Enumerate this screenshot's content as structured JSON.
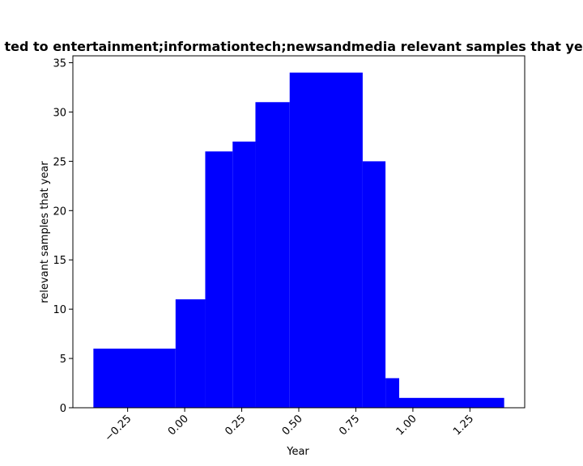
{
  "chart_data": {
    "type": "bar",
    "title": "ted to entertainment;informationtech;newsandmedia relevant samples that yea",
    "xlabel": "Year",
    "ylabel": "relevant samples that year",
    "xlim": [
      -0.49,
      1.49
    ],
    "ylim": [
      0,
      35.7
    ],
    "bar_color": "#0000ff",
    "x_ticks": [
      -0.25,
      0.0,
      0.25,
      0.5,
      0.75,
      1.0,
      1.25
    ],
    "x_tick_labels": [
      "−0.25",
      "0.00",
      "0.25",
      "0.50",
      "0.75",
      "1.00",
      "1.25"
    ],
    "y_ticks": [
      0,
      5,
      10,
      15,
      20,
      25,
      30,
      35
    ],
    "y_tick_labels": [
      "0",
      "5",
      "10",
      "15",
      "20",
      "25",
      "30",
      "35"
    ],
    "bars": [
      {
        "x": -0.04,
        "value": 6
      },
      {
        "x": 0.09,
        "value": 11
      },
      {
        "x": 0.21,
        "value": 26
      },
      {
        "x": 0.31,
        "value": 27
      },
      {
        "x": 0.46,
        "value": 31
      },
      {
        "x": 0.78,
        "value": 34
      },
      {
        "x": 0.88,
        "value": 25
      },
      {
        "x": 0.94,
        "value": 3
      },
      {
        "x": 1.4,
        "value": 1
      }
    ],
    "grid": false,
    "legend": "none"
  }
}
